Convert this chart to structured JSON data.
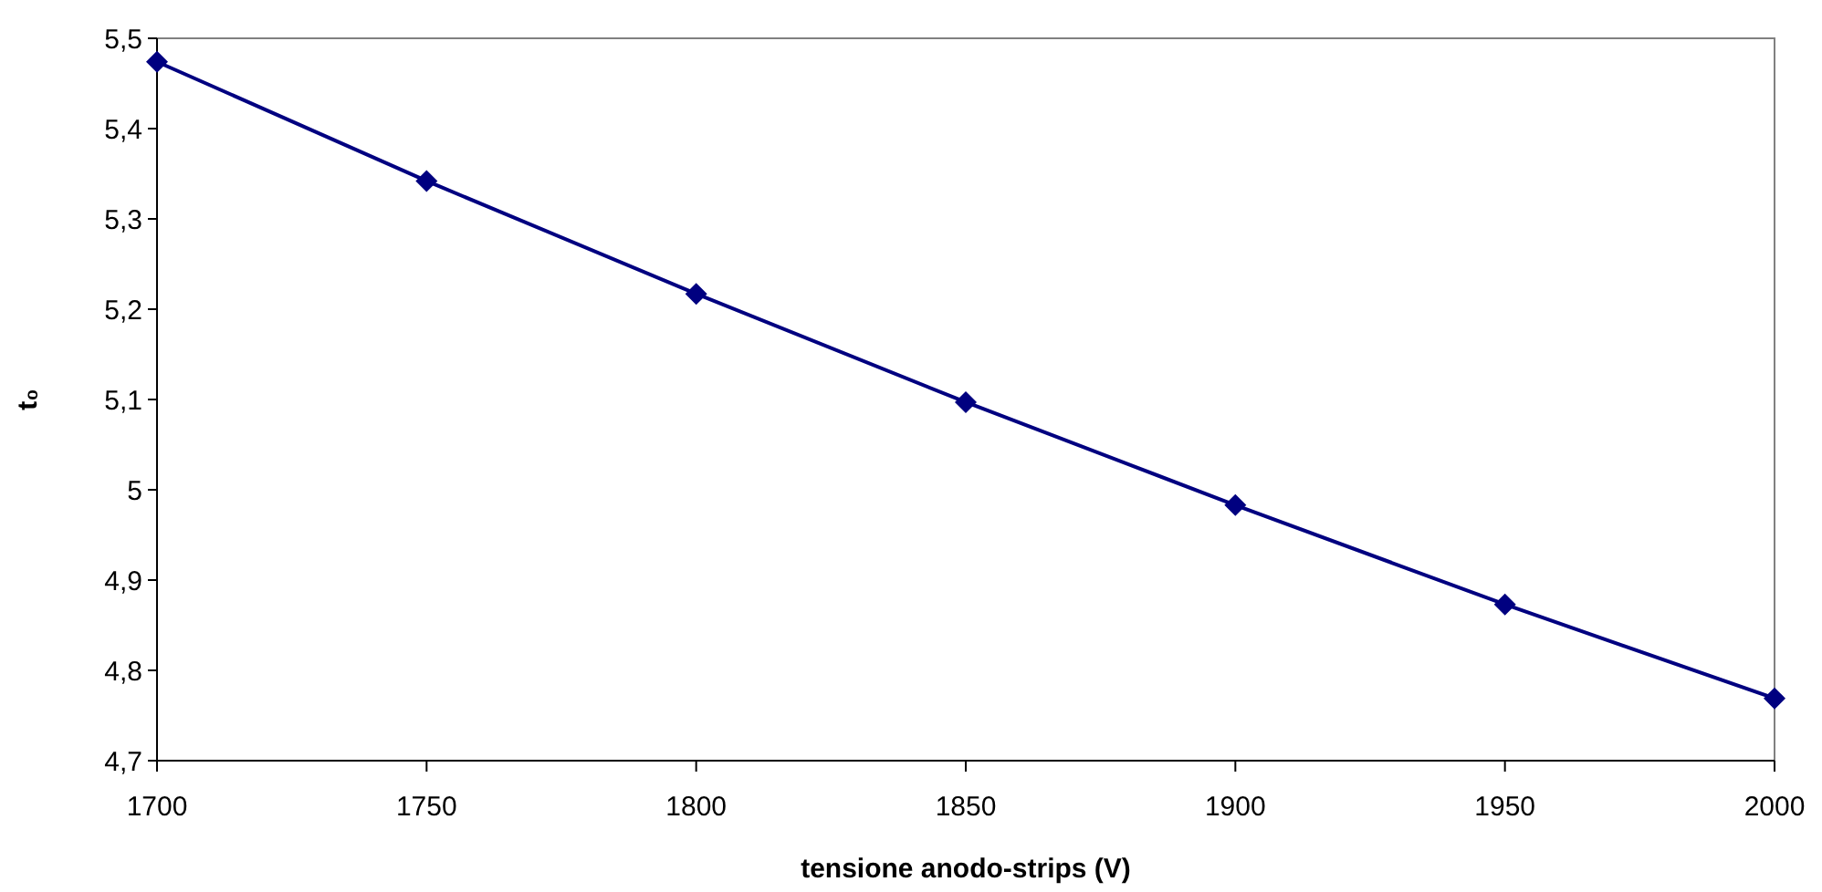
{
  "chart_data": {
    "type": "line",
    "xlabel": "tensione anodo-strips (V)",
    "ylabel": "t₀",
    "x": [
      1700,
      1750,
      1800,
      1850,
      1900,
      1950,
      2000
    ],
    "series": [
      {
        "color": "#000080",
        "values": [
          5.474,
          5.342,
          5.217,
          5.097,
          4.983,
          4.873,
          4.769
        ]
      }
    ],
    "xlim": [
      1700,
      2000
    ],
    "xticks": [
      1700,
      1750,
      1800,
      1850,
      1900,
      1950,
      2000
    ],
    "ylim": [
      4.7,
      5.5
    ],
    "yticks": [
      {
        "value": 4.7,
        "label": "4,7"
      },
      {
        "value": 4.8,
        "label": "4,8"
      },
      {
        "value": 4.9,
        "label": "4,9"
      },
      5,
      {
        "value": 5.1,
        "label": "5,1"
      },
      {
        "value": 5.2,
        "label": "5,2"
      },
      {
        "value": 5.3,
        "label": "5,3"
      },
      {
        "value": 5.4,
        "label": "5,4"
      },
      {
        "value": 5.5,
        "label": "5,5"
      }
    ],
    "grid": false,
    "marker": "diamond",
    "line_style": "solid"
  }
}
